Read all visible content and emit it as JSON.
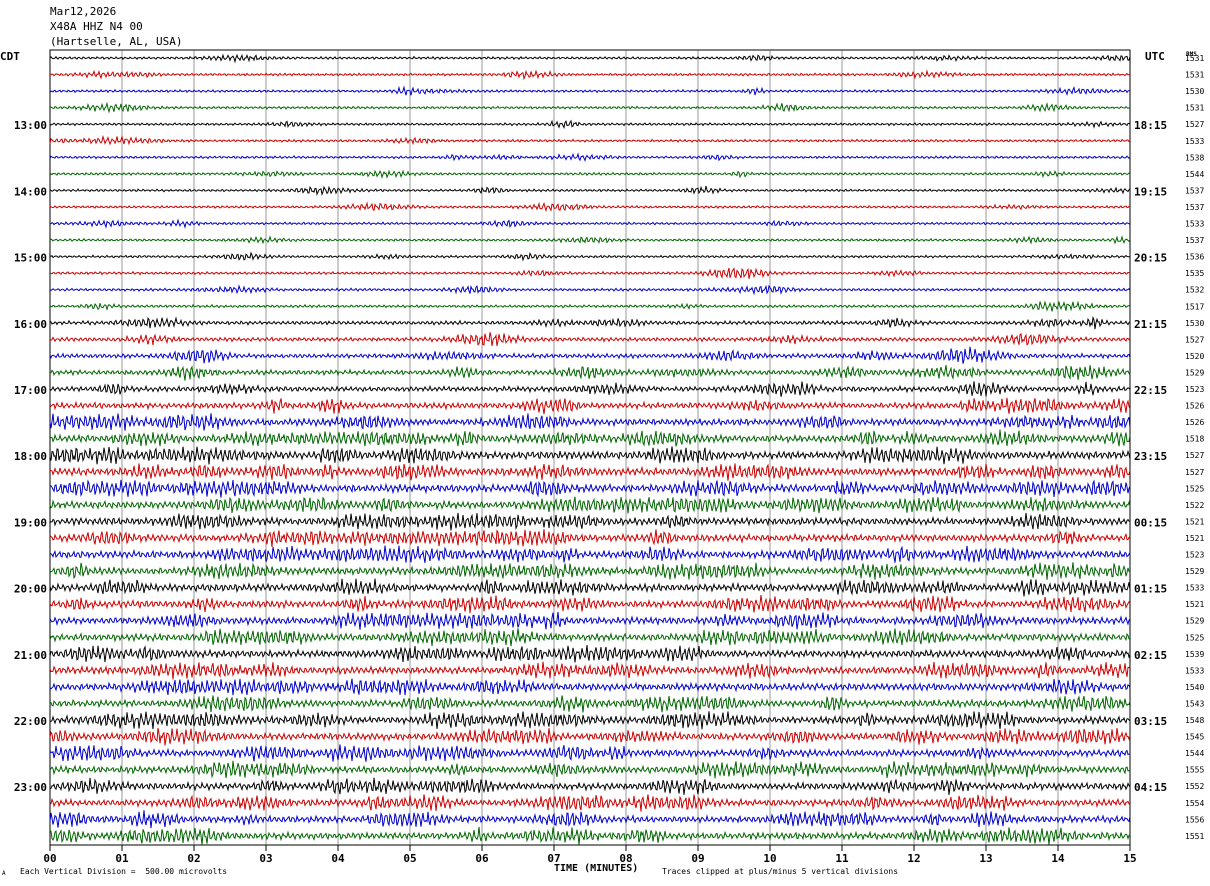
{
  "header": {
    "date": "Mar12,2026",
    "station": "X48A HHZ N4 00",
    "location": "(Hartselle, AL, USA)"
  },
  "left_axis_title": "CDT",
  "right_axis_title": "UTC",
  "rms_title": "RMS",
  "footer": {
    "scale_note": "Each Vertical Division =  500.00 microvolts",
    "clip_note": "Traces clipped at plus/minus 5 vertical divisions",
    "corner_mark": "A"
  },
  "chart_data": {
    "type": "helicorder",
    "title": "",
    "xlabel": "TIME (MINUTES)",
    "xlim": [
      0,
      15
    ],
    "x_ticks": [
      "00",
      "01",
      "02",
      "03",
      "04",
      "05",
      "06",
      "07",
      "08",
      "09",
      "10",
      "11",
      "12",
      "13",
      "14",
      "15"
    ],
    "minutes_per_line": 15,
    "trace_colors": [
      "#000000",
      "#cc0000",
      "#0000cc",
      "#006600"
    ],
    "cdt_hour_labels": [
      "13:00",
      "14:00",
      "15:00",
      "16:00",
      "17:00",
      "18:00",
      "19:00",
      "20:00",
      "21:00",
      "22:00",
      "23:00"
    ],
    "utc_hour_labels": [
      "18:15",
      "19:15",
      "20:15",
      "21:15",
      "22:15",
      "23:15",
      "00:15",
      "01:15",
      "02:15",
      "03:15",
      "04:15"
    ],
    "first_labeled_line": 4,
    "rms_values": [
      1531,
      1531,
      1530,
      1531,
      1527,
      1533,
      1538,
      1544,
      1537,
      1537,
      1533,
      1537,
      1536,
      1535,
      1532,
      1517,
      1530,
      1527,
      1520,
      1529,
      1523,
      1526,
      1526,
      1518,
      1527,
      1527,
      1525,
      1522,
      1521,
      1521,
      1523,
      1529,
      1533,
      1521,
      1529,
      1525,
      1539,
      1533,
      1540,
      1543,
      1548,
      1545,
      1544,
      1555,
      1552,
      1554,
      1556,
      1551
    ],
    "activity_levels": [
      1.0,
      1.0,
      1.0,
      1.0,
      1.0,
      1.0,
      1.0,
      1.0,
      1.0,
      1.0,
      1.0,
      1.0,
      1.0,
      1.1,
      1.1,
      1.1,
      1.5,
      1.6,
      1.8,
      2.0,
      2.1,
      2.4,
      2.8,
      3.0,
      3.2,
      3.2,
      3.2,
      3.0,
      3.0,
      3.0,
      3.0,
      3.0,
      3.0,
      3.0,
      3.0,
      3.0,
      3.0,
      3.0,
      3.0,
      2.9,
      2.9,
      2.9,
      2.9,
      2.9,
      2.9,
      2.8,
      2.8,
      2.8
    ]
  }
}
